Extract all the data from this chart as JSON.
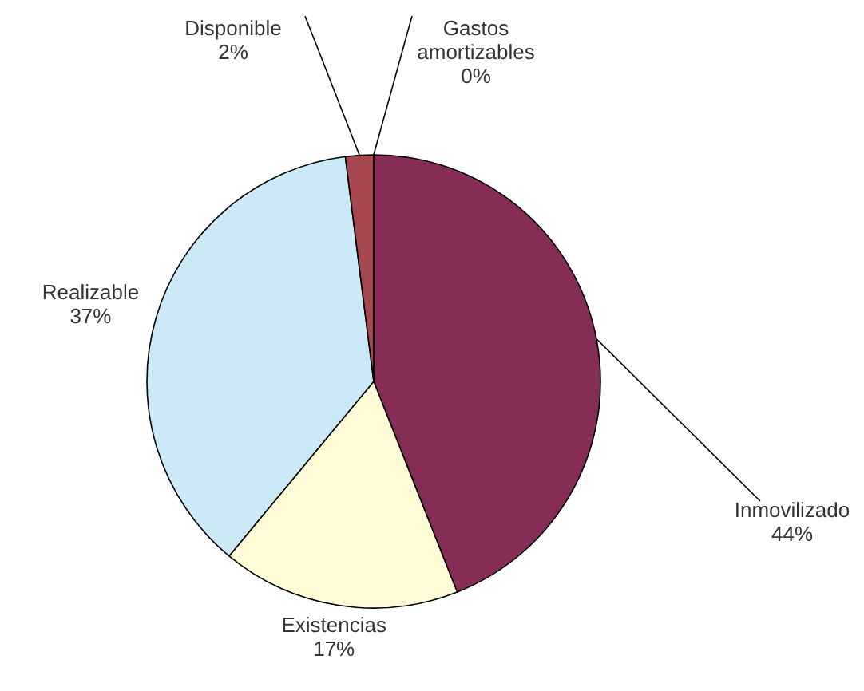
{
  "chart_data": {
    "type": "pie",
    "categories": [
      "Inmovilizado",
      "Existencias",
      "Realizable",
      "Disponible",
      "Gastos amortizables"
    ],
    "values": [
      44,
      17,
      37,
      2,
      0
    ],
    "colors": [
      "#852d57",
      "#fffbd6",
      "#cce9f7",
      "#a6464f",
      "#3d3d8f"
    ],
    "value_labels": [
      "44%",
      "17%",
      "37%",
      "2%",
      "0%"
    ]
  }
}
